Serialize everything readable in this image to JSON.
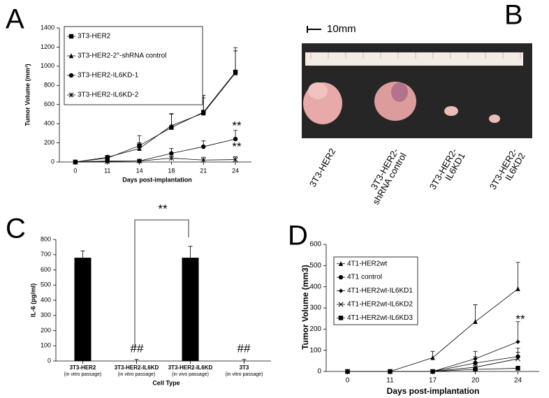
{
  "chart_data": [
    {
      "type": "line",
      "panel_label": "A",
      "x_label": "Days post-implantation",
      "y_label": "Tumor Volume (mm³)",
      "categories": [
        "0",
        "11",
        "14",
        "18",
        "21",
        "24"
      ],
      "ylim": [
        0,
        1400
      ],
      "yticks": [
        0,
        200,
        400,
        600,
        800,
        1000,
        1200,
        1400
      ],
      "series": [
        {
          "name": "3T3-HER2",
          "color": "#000000",
          "marker": "square",
          "values": [
            0,
            40,
            170,
            360,
            520,
            940
          ],
          "errors": [
            0,
            25,
            105,
            145,
            175,
            255
          ]
        },
        {
          "name": "3T3-HER2-2°-shRNA control",
          "color": "#000000",
          "marker": "triangle",
          "values": [
            0,
            50,
            140,
            380,
            510,
            930
          ],
          "errors": [
            0,
            20,
            60,
            120,
            160,
            230
          ]
        },
        {
          "name": "3T3-HER2-IL6KD-1",
          "color": "#000000",
          "marker": "circle",
          "values": [
            0,
            10,
            10,
            90,
            160,
            240
          ],
          "errors": [
            0,
            10,
            15,
            50,
            60,
            90
          ]
        },
        {
          "name": "3T3-HER2-IL6KD-2",
          "color": "#000000",
          "marker": "star",
          "values": [
            0,
            5,
            10,
            40,
            20,
            25
          ],
          "errors": [
            0,
            5,
            10,
            20,
            30,
            30
          ]
        }
      ],
      "annotations": [
        "**",
        "**"
      ]
    },
    {
      "type": "bar",
      "panel_label": "C",
      "x_label": "Cell Type",
      "y_label": "IL-6 (pg/ml)",
      "color": "#000000",
      "categories": [
        "3T3-HER2",
        "3T3-HER2-IL6KD",
        "3T3-HER2-IL6KD",
        "3T3"
      ],
      "category_notes": [
        "(in vitro passage)",
        "(in vitro passage)",
        "(in vivo passage)",
        "(in vitro passage)"
      ],
      "values": [
        680,
        0,
        680,
        0
      ],
      "errors": [
        45,
        10,
        75,
        10
      ],
      "ylim": [
        0,
        800
      ],
      "yticks": [
        0,
        100,
        200,
        300,
        400,
        500,
        600,
        700,
        800
      ],
      "annotations": [
        "**",
        "##",
        "##"
      ]
    },
    {
      "type": "line",
      "panel_label": "D",
      "x_label": "Days post-implantation",
      "y_label": "Tumor Volume (mm3)",
      "categories": [
        "0",
        "11",
        "17",
        "20",
        "24"
      ],
      "ylim": [
        0,
        600
      ],
      "yticks": [
        0,
        100,
        200,
        300,
        400,
        500,
        600
      ],
      "series": [
        {
          "name": "4T1-HER2wt",
          "color": "#000000",
          "marker": "triangle",
          "values": [
            0,
            0,
            65,
            235,
            390
          ],
          "errors": [
            0,
            0,
            30,
            80,
            125
          ]
        },
        {
          "name": "4T1 control",
          "color": "#000000",
          "marker": "circle",
          "values": [
            0,
            0,
            0,
            40,
            70
          ],
          "errors": [
            0,
            0,
            5,
            30,
            40
          ]
        },
        {
          "name": "4T1-HER2wt-IL6KD1",
          "color": "#000000",
          "marker": "diamond",
          "values": [
            0,
            0,
            0,
            60,
            140
          ],
          "errors": [
            0,
            0,
            5,
            35,
            95
          ]
        },
        {
          "name": "4T1-HER2wt-IL6KD2",
          "color": "#000000",
          "marker": "x",
          "values": [
            0,
            0,
            0,
            20,
            60
          ],
          "errors": [
            0,
            0,
            5,
            20,
            30
          ]
        },
        {
          "name": "4T1-HER2wt-IL6KD3",
          "color": "#000000",
          "marker": "square",
          "values": [
            0,
            0,
            0,
            10,
            15
          ],
          "errors": [
            0,
            0,
            5,
            10,
            10
          ]
        }
      ],
      "annotations": [
        "**"
      ]
    }
  ],
  "photo_panel": {
    "panel_label": "B",
    "scale_label": "10mm",
    "sample_labels": [
      [
        "3T3-HER2"
      ],
      [
        "3T3-HER2-",
        "shRNA control"
      ],
      [
        "3T3-HER2-",
        "IL6KD1"
      ],
      [
        "3T3-HER2-",
        "IL6KD2"
      ]
    ]
  }
}
